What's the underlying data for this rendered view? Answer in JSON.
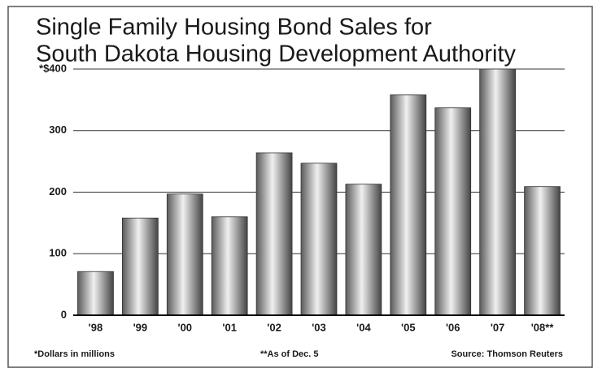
{
  "chart_data": {
    "type": "bar",
    "title": [
      "Single Family Housing Bond Sales for",
      "South Dakota Housing Development Authority"
    ],
    "categories": [
      "'98",
      "'99",
      "'00",
      "'01",
      "'02",
      "'03",
      "'04",
      "'05",
      "'06",
      "'07",
      "'08**"
    ],
    "values": [
      71,
      158,
      197,
      160,
      264,
      247,
      213,
      358,
      337,
      400,
      209
    ],
    "color": "#a0a0a0",
    "ylim": [
      0,
      400
    ],
    "yticks": [
      0,
      100,
      200,
      300,
      {
        "value": 400,
        "label": "*$400"
      }
    ],
    "grid": true,
    "notes": [
      "*Dollars in millions",
      "**As of Dec. 5",
      "Source: Thomson Reuters"
    ]
  }
}
